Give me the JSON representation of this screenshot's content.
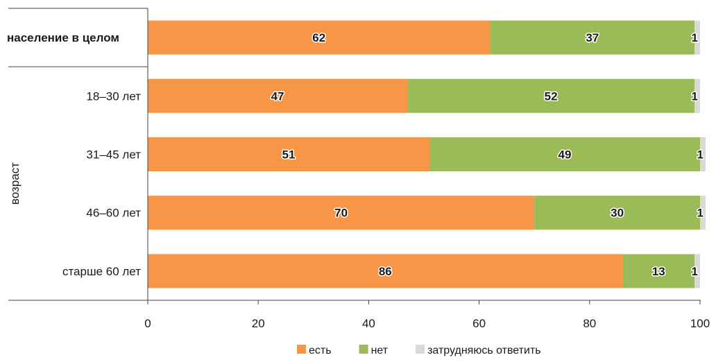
{
  "chart_data": {
    "type": "bar",
    "orientation": "horizontal",
    "stacked": true,
    "categories": [
      "население в целом",
      "18–30 лет",
      "31–45 лет",
      "46–60 лет",
      "старше 60 лет"
    ],
    "category_group": {
      "label": "возраст",
      "members": [
        "18–30 лет",
        "31–45 лет",
        "46–60 лет",
        "старше 60 лет"
      ]
    },
    "series": [
      {
        "name": "есть",
        "color": "#F79646",
        "values": [
          62,
          47,
          51,
          70,
          86
        ]
      },
      {
        "name": "нет",
        "color": "#9BBB59",
        "values": [
          37,
          52,
          49,
          30,
          13
        ]
      },
      {
        "name": "затрудняюсь ответить",
        "color": "#D9D9D9",
        "values": [
          1,
          1,
          1,
          1,
          1
        ]
      }
    ],
    "xlim": [
      0,
      100
    ],
    "xticks": [
      0,
      20,
      40,
      60,
      80,
      100
    ],
    "legend_position": "bottom",
    "grid": false
  }
}
